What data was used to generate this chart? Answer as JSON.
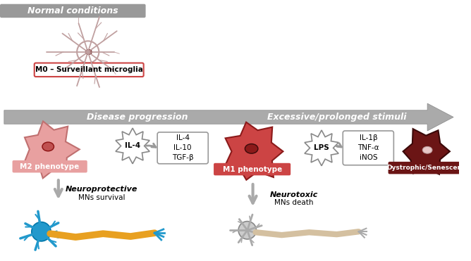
{
  "bg_color": "#ffffff",
  "normal_banner_text": "Normal conditions",
  "m0_label": "M0 – Surveillant microglia",
  "disease_prog_text": "Disease progression",
  "excessive_text": "Excessive/prolonged stimuli",
  "m2_label": "M2 phenotype",
  "m1_label": "M1 phenotype",
  "dystrophic_label": "Dystrophic/Senescent",
  "il4_burst": "IL-4",
  "lps_burst": "LPS",
  "m2_cytokines": "IL-4\nIL-10\nTGF-β",
  "m1_cytokines": "IL-1β\nTNF-α\niNOS",
  "neuroprotective_bold": "Neuroprotective",
  "neuroprotective_sub": "MNs survival",
  "neurotoxic_bold": "Neurotoxic",
  "neurotoxic_sub": "MNs death",
  "m0_cell_color": "#c0a0a0",
  "m0_nucleus_color": "#8b2020",
  "m2_cell_color": "#e8a0a0",
  "m2_nucleus_color": "#c05050",
  "m1_cell_color": "#cc4444",
  "m1_nucleus_color": "#8b1a1a",
  "dystrophic_color": "#6b1515",
  "dystrophic_nucleus_color": "#e8c8c8",
  "neuron_healthy_body": "#2299cc",
  "neuron_healthy_axon": "#e8a020",
  "neuron_dead_body": "#aaaaaa",
  "neuron_dead_axon": "#d4c0a0",
  "m2_label_bg": "#e8a0a0",
  "m1_label_bg": "#cc4444",
  "arrow_color": "#aaaaaa",
  "burst_edge": "#888888"
}
